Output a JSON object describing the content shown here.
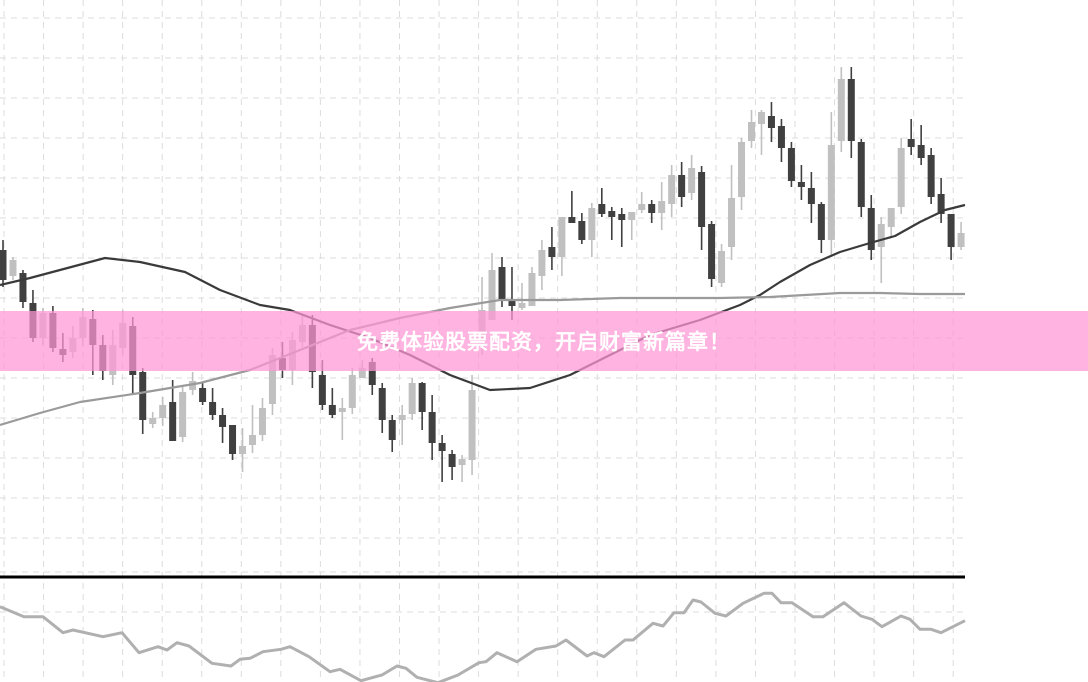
{
  "banner": {
    "text": "免费体验股票配资，开启财富新篇章！",
    "color": "#ff96d4"
  },
  "colors": {
    "bearish": "#404040",
    "bullish": "#c0c0c0",
    "ma_slow": "#3a3a3a",
    "ma_fast": "#9a9a9a",
    "indicator": "#b0b0b0",
    "grid": "#dcdcdc",
    "separator": "#000000"
  },
  "chart_data": [
    {
      "type": "candlestick",
      "title": "",
      "grid": true,
      "ohlc_order": [
        "open",
        "high",
        "low",
        "close"
      ],
      "candles": [
        [
          35,
          36,
          31.3,
          32
        ],
        [
          32.4,
          34.3,
          32,
          34
        ],
        [
          32.7,
          33,
          29.2,
          29.8
        ],
        [
          29.7,
          31,
          25.8,
          26.2
        ],
        [
          26.2,
          29.2,
          25.5,
          28.7
        ],
        [
          28.7,
          29.4,
          24.8,
          25.2
        ],
        [
          25.1,
          26.7,
          23.8,
          24.5
        ],
        [
          24.8,
          27.4,
          24.2,
          26.2
        ],
        [
          26.2,
          29.2,
          25.4,
          28.3
        ],
        [
          28.1,
          29,
          22.5,
          25.5
        ],
        [
          25.5,
          26.5,
          22,
          22.9
        ],
        [
          22.5,
          27,
          21.5,
          25.5
        ],
        [
          25.2,
          29,
          24.5,
          27.7
        ],
        [
          27.4,
          28.3,
          20.5,
          22.5
        ],
        [
          22.8,
          23.2,
          16.6,
          18
        ],
        [
          17.6,
          18.8,
          17.2,
          18.2
        ],
        [
          18.2,
          20.3,
          17.4,
          19.5
        ],
        [
          19.8,
          22,
          15.9,
          15.9
        ],
        [
          16.3,
          21.5,
          15.8,
          20.8
        ],
        [
          21,
          22.8,
          20.5,
          21.9
        ],
        [
          21.2,
          21.8,
          19.5,
          19.8
        ],
        [
          19.8,
          21.2,
          18,
          18.5
        ],
        [
          18.5,
          19.2,
          15.7,
          17.3
        ],
        [
          17.5,
          17.5,
          14,
          14.6
        ],
        [
          14.6,
          17.2,
          12.8,
          15.4
        ],
        [
          15.5,
          19.5,
          14.7,
          16.5
        ],
        [
          16.5,
          20.2,
          15.9,
          19.2
        ],
        [
          19.6,
          25.2,
          18.5,
          24.5
        ],
        [
          24.2,
          25.8,
          22.2,
          23
        ],
        [
          23,
          26.8,
          21.5,
          26
        ],
        [
          25.8,
          28.5,
          25.3,
          27.5
        ],
        [
          27.5,
          28.5,
          21.2,
          22.8
        ],
        [
          22.5,
          24,
          19,
          19.5
        ],
        [
          19.5,
          21.2,
          18.2,
          18.5
        ],
        [
          18.8,
          20.2,
          16,
          19.2
        ],
        [
          19.2,
          23.2,
          18.6,
          22.5
        ],
        [
          22.2,
          24,
          22.2,
          23.2
        ],
        [
          23.8,
          24.2,
          20.5,
          21.5
        ],
        [
          21.2,
          21.7,
          16.7,
          18
        ],
        [
          18,
          18.5,
          14.8,
          16
        ],
        [
          18,
          19.5,
          15.5,
          18.5
        ],
        [
          18.6,
          22.2,
          18,
          21.7
        ],
        [
          21.7,
          21.8,
          17,
          18.8
        ],
        [
          18.8,
          20.5,
          14,
          15.7
        ],
        [
          15.7,
          16.5,
          11.8,
          14.9
        ],
        [
          14.6,
          15,
          12,
          13.3
        ],
        [
          13.5,
          14.5,
          11.8,
          14.1
        ],
        [
          14,
          22.5,
          12.5,
          21
        ],
        [
          26,
          32.3,
          24.5,
          29
        ],
        [
          28,
          34.7,
          28,
          33
        ],
        [
          33.3,
          34.3,
          29.3,
          30.1
        ],
        [
          30.1,
          33.3,
          28,
          29.4
        ],
        [
          29.2,
          31.7,
          29,
          29.7
        ],
        [
          29.4,
          33.3,
          29.4,
          32.7
        ],
        [
          32.4,
          36,
          31,
          35
        ],
        [
          35.3,
          37.3,
          33,
          34.3
        ],
        [
          34.3,
          38.3,
          32.4,
          38.3
        ],
        [
          38.3,
          40.9,
          37.7,
          37.7
        ],
        [
          37.9,
          38.7,
          35.6,
          36
        ],
        [
          36,
          39.7,
          34.3,
          39.2
        ],
        [
          39.6,
          41.2,
          38.3,
          38.6
        ],
        [
          38.9,
          39.3,
          36,
          38.3
        ],
        [
          38.6,
          39.2,
          35.3,
          38
        ],
        [
          38,
          38.8,
          36,
          38.8
        ],
        [
          39,
          40.8,
          38.7,
          39.6
        ],
        [
          39.6,
          40,
          37.7,
          38.7
        ],
        [
          38.7,
          41.8,
          37,
          39.9
        ],
        [
          39.6,
          43.5,
          38.3,
          42.5
        ],
        [
          42.5,
          43.8,
          39.3,
          40.3
        ],
        [
          40.7,
          44.5,
          40,
          43.2
        ],
        [
          42.8,
          43.4,
          35,
          37.3
        ],
        [
          37.6,
          37.9,
          31.3,
          32.1
        ],
        [
          31.7,
          35.6,
          31.3,
          34.9
        ],
        [
          35.3,
          43.5,
          34,
          40.2
        ],
        [
          40.3,
          46.2,
          39,
          45.8
        ],
        [
          45.9,
          49,
          45.2,
          47.8
        ],
        [
          47.6,
          49,
          44.5,
          48.8
        ],
        [
          48.4,
          49.8,
          45.8,
          47.2
        ],
        [
          47.4,
          48.1,
          43.8,
          45.2
        ],
        [
          45.2,
          45.8,
          41.3,
          41.9
        ],
        [
          41.8,
          43.5,
          40,
          41.3
        ],
        [
          41.2,
          42.8,
          37.7,
          39.6
        ],
        [
          39.6,
          39.8,
          34.7,
          36
        ],
        [
          36,
          48.8,
          34.3,
          45.5
        ],
        [
          45.9,
          53.3,
          44.8,
          52.1
        ],
        [
          52.1,
          53.3,
          44.2,
          45.9
        ],
        [
          45.8,
          46.1,
          38.3,
          39.3
        ],
        [
          39.2,
          40.5,
          34,
          35
        ],
        [
          35.3,
          38.3,
          31.7,
          37.6
        ],
        [
          37.3,
          39.2,
          36.3,
          39.2
        ],
        [
          39.3,
          46.2,
          38.6,
          45.2
        ],
        [
          46.1,
          48.1,
          44.5,
          45.3
        ],
        [
          45.5,
          47.5,
          43.5,
          44.2
        ],
        [
          44.5,
          45.2,
          39.6,
          40.3
        ],
        [
          40.6,
          42.2,
          37.7,
          38.6
        ],
        [
          38.6,
          38.6,
          34,
          35.3
        ],
        [
          35.3,
          37.8,
          35,
          36.7
        ]
      ],
      "moving_averages": [
        {
          "points": [
            [
              0,
              31.5
            ],
            [
              3,
              32.2
            ],
            [
              6,
              33
            ],
            [
              10.5,
              34.2
            ],
            [
              14,
              33.8
            ],
            [
              18.5,
              32.8
            ],
            [
              22,
              31
            ],
            [
              26,
              29.5
            ],
            [
              29,
              29
            ],
            [
              33,
              27.5
            ],
            [
              37,
              26.2
            ],
            [
              41,
              24.5
            ],
            [
              45,
              22.5
            ],
            [
              49,
              21
            ],
            [
              53,
              21.2
            ],
            [
              57,
              22.5
            ],
            [
              61,
              24.5
            ],
            [
              65,
              26.5
            ],
            [
              70,
              28
            ],
            [
              74,
              29.5
            ],
            [
              76,
              30.5
            ],
            [
              78,
              31.8
            ],
            [
              81,
              33.5
            ],
            [
              84,
              34.8
            ],
            [
              87,
              35.7
            ],
            [
              89.5,
              36.4
            ],
            [
              92,
              37.8
            ],
            [
              94.5,
              39
            ],
            [
              96.5,
              39.5
            ]
          ]
        },
        {
          "points": [
            [
              0,
              17.5
            ],
            [
              4,
              18.7
            ],
            [
              8,
              19.8
            ],
            [
              14,
              20.7
            ],
            [
              20,
              21.7
            ],
            [
              25,
              23
            ],
            [
              30,
              25
            ],
            [
              35,
              27
            ],
            [
              40,
              28.2
            ],
            [
              45,
              29.2
            ],
            [
              50,
              30
            ],
            [
              56,
              30
            ],
            [
              62,
              30.2
            ],
            [
              68,
              30.2
            ],
            [
              72,
              30.2
            ],
            [
              77,
              30.3
            ],
            [
              84,
              30.7
            ],
            [
              88,
              30.7
            ],
            [
              92,
              30.6
            ],
            [
              96.5,
              30.6
            ]
          ]
        }
      ]
    },
    {
      "type": "line",
      "title": "",
      "grid": true,
      "points": [
        [
          0,
          83.3
        ],
        [
          2.4,
          73.3
        ],
        [
          4.3,
          73.3
        ],
        [
          6.3,
          57.3
        ],
        [
          7.3,
          60
        ],
        [
          10.3,
          53.3
        ],
        [
          12.2,
          57.3
        ],
        [
          13.9,
          37.3
        ],
        [
          15.8,
          43.3
        ],
        [
          16.7,
          40
        ],
        [
          17.7,
          47.3
        ],
        [
          18.9,
          44
        ],
        [
          21.2,
          26.7
        ],
        [
          23.1,
          24
        ],
        [
          24,
          30.7
        ],
        [
          25,
          31.7
        ],
        [
          26.3,
          38.3
        ],
        [
          28.1,
          40.7
        ],
        [
          29,
          43.3
        ],
        [
          30.9,
          33.3
        ],
        [
          33,
          18.3
        ],
        [
          34,
          20.7
        ],
        [
          36.1,
          9.3
        ],
        [
          38.2,
          15
        ],
        [
          39.7,
          24
        ],
        [
          40.6,
          21.7
        ],
        [
          41.7,
          12.7
        ],
        [
          43.8,
          7.3
        ],
        [
          45.8,
          15
        ],
        [
          47.9,
          27.3
        ],
        [
          48.6,
          28.3
        ],
        [
          49.7,
          37.3
        ],
        [
          51.7,
          28.3
        ],
        [
          53.6,
          40.7
        ],
        [
          55.6,
          44
        ],
        [
          56.6,
          50
        ],
        [
          58.7,
          34
        ],
        [
          59.4,
          37.3
        ],
        [
          60.4,
          33.3
        ],
        [
          62.5,
          50
        ],
        [
          63.3,
          50
        ],
        [
          65.3,
          66.7
        ],
        [
          66.3,
          64
        ],
        [
          67.4,
          77.3
        ],
        [
          68.4,
          77.3
        ],
        [
          69.3,
          90
        ],
        [
          70.1,
          88
        ],
        [
          71.5,
          76.7
        ],
        [
          72.6,
          74
        ],
        [
          74.3,
          86.7
        ],
        [
          76.4,
          96.7
        ],
        [
          77.2,
          96.7
        ],
        [
          78.1,
          87.3
        ],
        [
          79.2,
          87.3
        ],
        [
          81.3,
          73.3
        ],
        [
          82.3,
          73.3
        ],
        [
          84.4,
          87.3
        ],
        [
          86.1,
          74
        ],
        [
          87.2,
          70.7
        ],
        [
          88.2,
          63.3
        ],
        [
          90.1,
          74
        ],
        [
          91,
          70.7
        ],
        [
          92,
          60.7
        ],
        [
          93.1,
          60.7
        ],
        [
          94.1,
          57.3
        ],
        [
          96.5,
          69.3
        ]
      ]
    }
  ]
}
